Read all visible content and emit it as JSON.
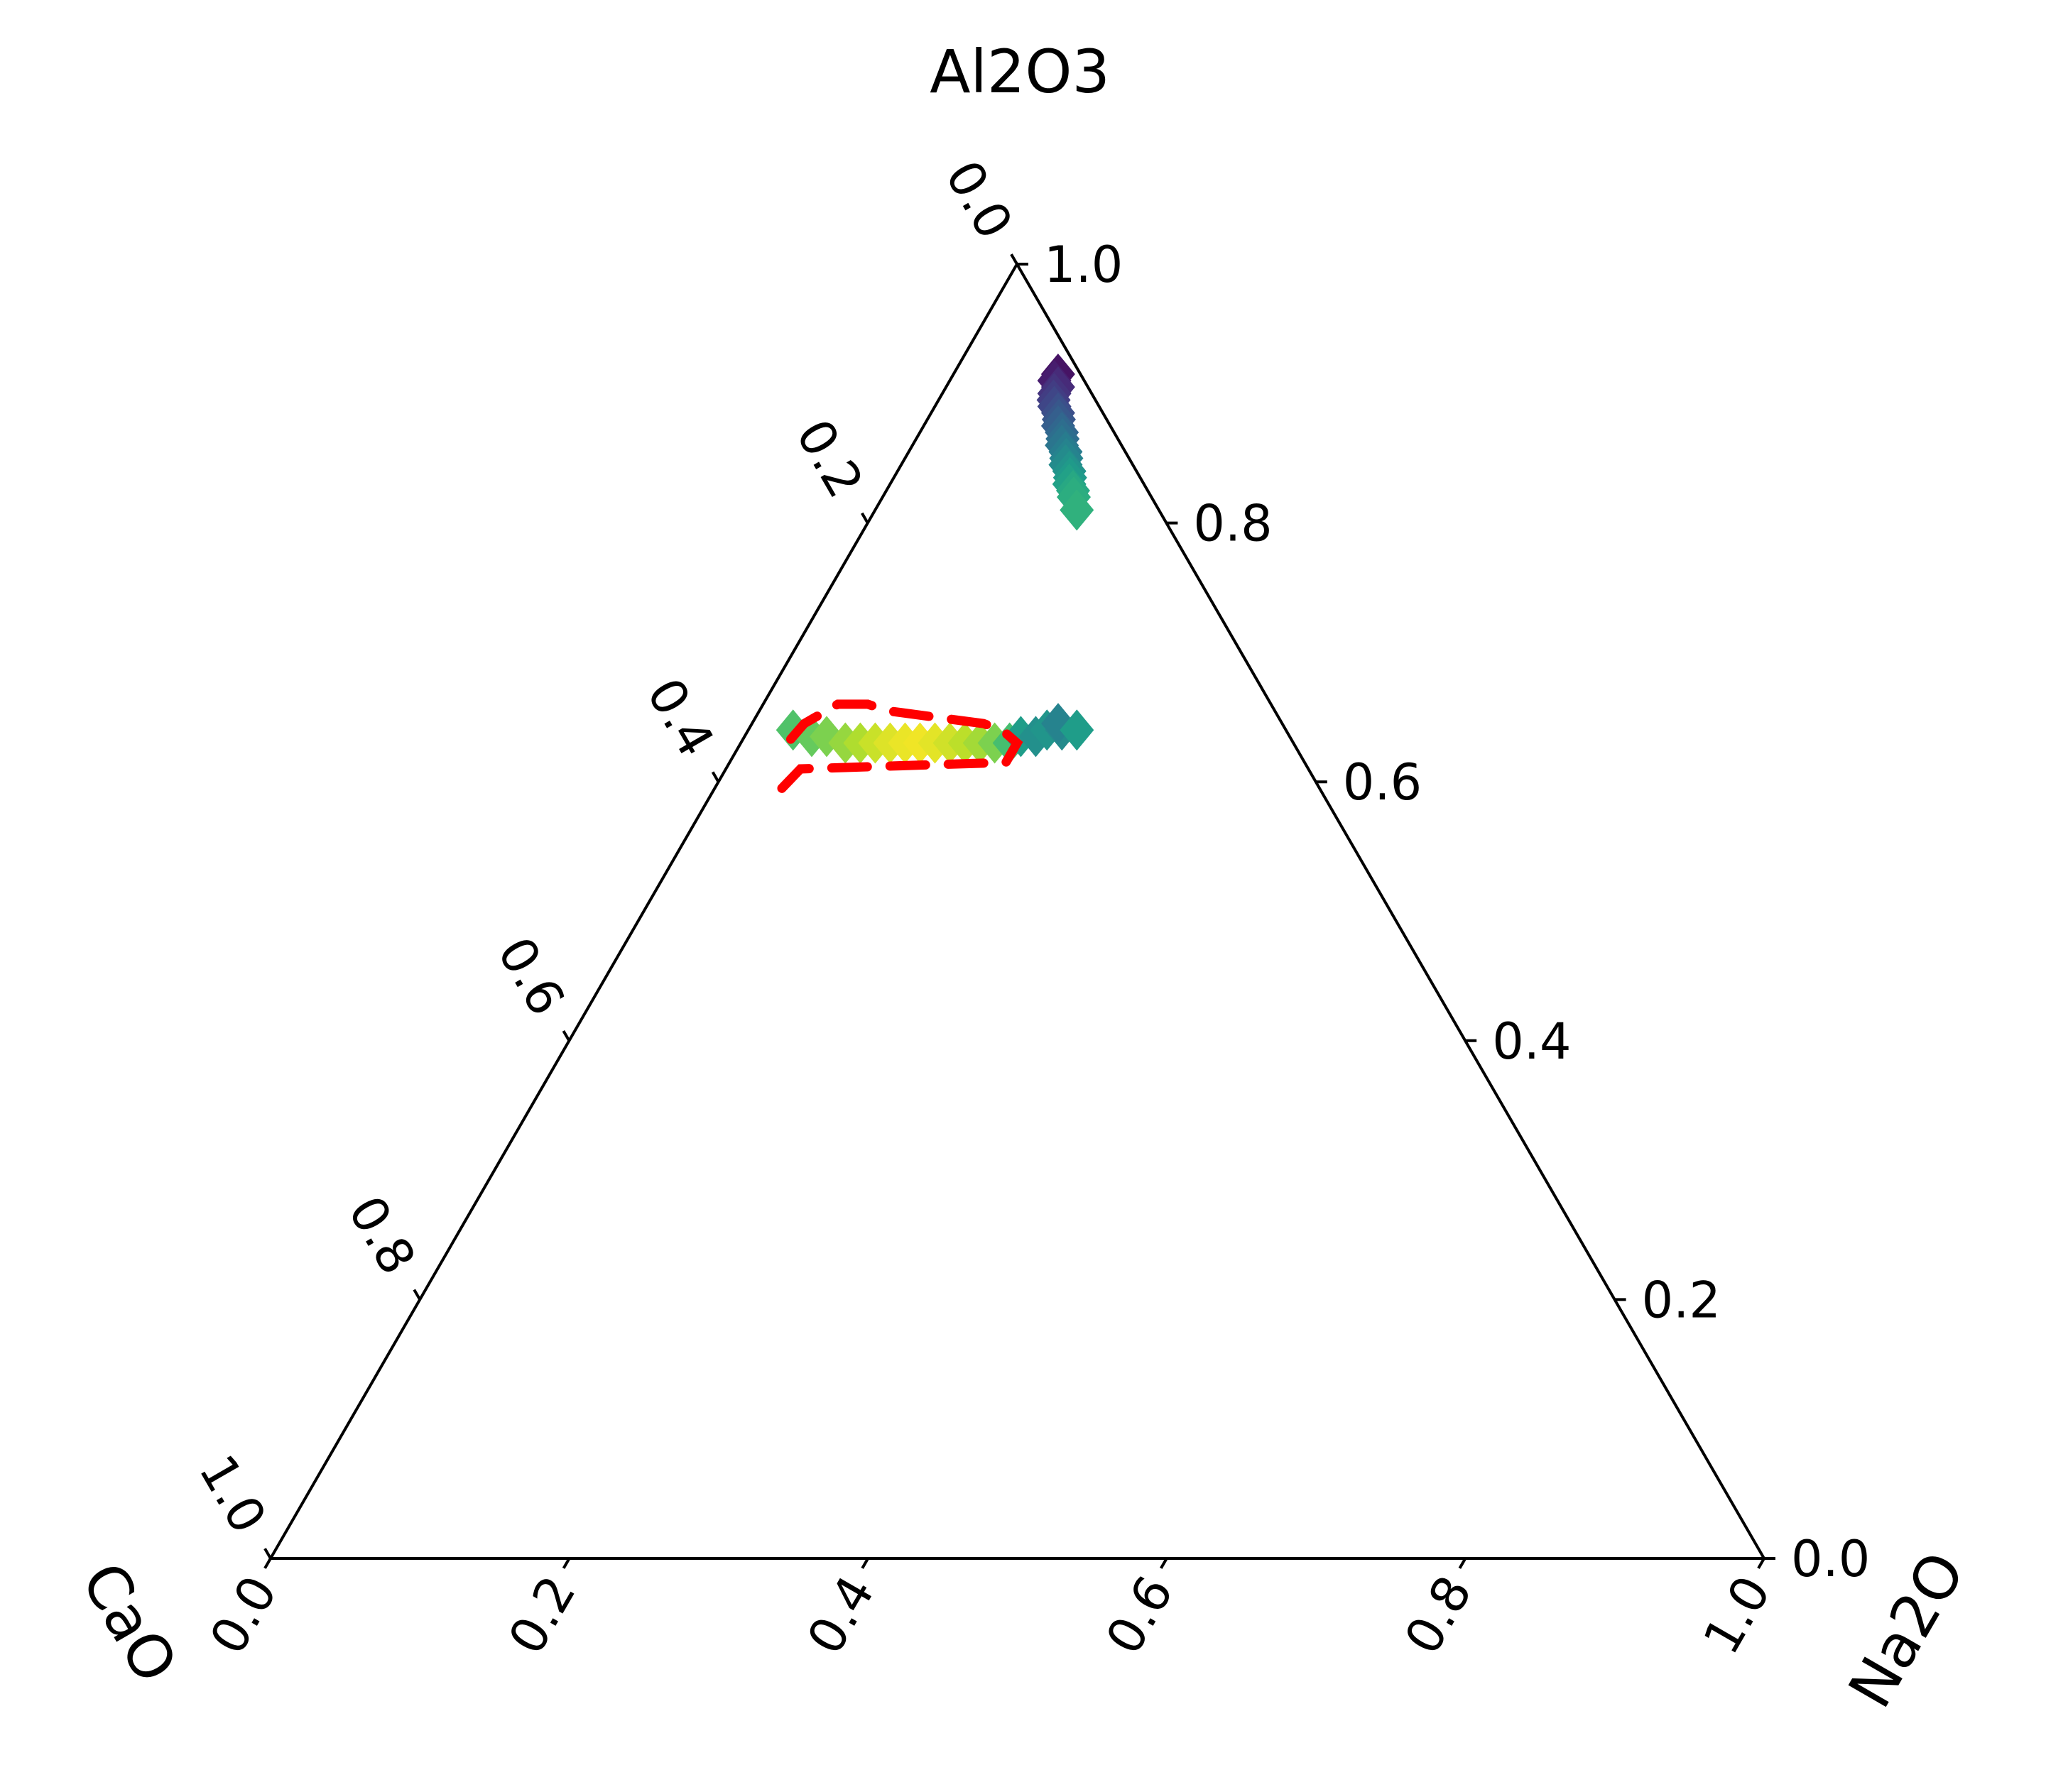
{
  "chart_data": {
    "type": "scatter",
    "subtype": "ternary",
    "axes": {
      "top": "Al2O3",
      "left": "CaO",
      "right": "Na2O"
    },
    "ticks": [
      "0.0",
      "0.2",
      "0.4",
      "0.6",
      "0.8",
      "1.0"
    ],
    "tick_values": [
      0,
      0.2,
      0.4,
      0.6,
      0.8,
      1.0
    ],
    "colormap": "viridis",
    "marker": "diamond",
    "grid": false,
    "series": [
      {
        "points": [
          {
            "t": 0.915,
            "l": 0.015,
            "c": 0.05
          },
          {
            "t": 0.91,
            "l": 0.02,
            "c": 0.08
          },
          {
            "t": 0.905,
            "l": 0.02,
            "c": 0.12
          },
          {
            "t": 0.9,
            "l": 0.025,
            "c": 0.15
          },
          {
            "t": 0.895,
            "l": 0.028,
            "c": 0.18
          },
          {
            "t": 0.89,
            "l": 0.03,
            "c": 0.21
          },
          {
            "t": 0.885,
            "l": 0.03,
            "c": 0.24
          },
          {
            "t": 0.88,
            "l": 0.032,
            "c": 0.27
          },
          {
            "t": 0.875,
            "l": 0.035,
            "c": 0.3
          },
          {
            "t": 0.87,
            "l": 0.035,
            "c": 0.33
          },
          {
            "t": 0.865,
            "l": 0.037,
            "c": 0.36
          },
          {
            "t": 0.86,
            "l": 0.04,
            "c": 0.39
          },
          {
            "t": 0.855,
            "l": 0.04,
            "c": 0.42
          },
          {
            "t": 0.85,
            "l": 0.042,
            "c": 0.45
          },
          {
            "t": 0.845,
            "l": 0.045,
            "c": 0.48
          },
          {
            "t": 0.84,
            "l": 0.045,
            "c": 0.51
          },
          {
            "t": 0.835,
            "l": 0.047,
            "c": 0.54
          },
          {
            "t": 0.83,
            "l": 0.05,
            "c": 0.57
          },
          {
            "t": 0.825,
            "l": 0.05,
            "c": 0.6
          },
          {
            "t": 0.82,
            "l": 0.052,
            "c": 0.62
          },
          {
            "t": 0.81,
            "l": 0.055,
            "c": 0.64
          }
        ]
      },
      {
        "points": [
          {
            "t": 0.64,
            "l": 0.33,
            "c": 0.72
          },
          {
            "t": 0.635,
            "l": 0.32,
            "c": 0.76
          },
          {
            "t": 0.635,
            "l": 0.31,
            "c": 0.8
          },
          {
            "t": 0.63,
            "l": 0.3,
            "c": 0.84
          },
          {
            "t": 0.63,
            "l": 0.29,
            "c": 0.88
          },
          {
            "t": 0.63,
            "l": 0.28,
            "c": 0.92
          },
          {
            "t": 0.63,
            "l": 0.27,
            "c": 0.95
          },
          {
            "t": 0.63,
            "l": 0.26,
            "c": 0.97
          },
          {
            "t": 0.63,
            "l": 0.25,
            "c": 0.98
          },
          {
            "t": 0.63,
            "l": 0.24,
            "c": 0.96
          },
          {
            "t": 0.63,
            "l": 0.23,
            "c": 0.93
          },
          {
            "t": 0.63,
            "l": 0.22,
            "c": 0.9
          },
          {
            "t": 0.63,
            "l": 0.21,
            "c": 0.86
          },
          {
            "t": 0.63,
            "l": 0.2,
            "c": 0.8
          },
          {
            "t": 0.63,
            "l": 0.19,
            "c": 0.7
          },
          {
            "t": 0.635,
            "l": 0.18,
            "c": 0.55
          },
          {
            "t": 0.635,
            "l": 0.17,
            "c": 0.5
          },
          {
            "t": 0.64,
            "l": 0.16,
            "c": 0.52
          },
          {
            "t": 0.64,
            "l": 0.15,
            "c": 0.48
          },
          {
            "t": 0.645,
            "l": 0.15,
            "c": 0.45
          },
          {
            "t": 0.64,
            "l": 0.14,
            "c": 0.55
          }
        ]
      }
    ],
    "outline": {
      "color": "#ff0000",
      "style": "dashed",
      "points": [
        {
          "t": 0.595,
          "l": 0.36
        },
        {
          "t": 0.61,
          "l": 0.34
        },
        {
          "t": 0.615,
          "l": 0.2
        },
        {
          "t": 0.625,
          "l": 0.19
        },
        {
          "t": 0.63,
          "l": 0.185
        },
        {
          "t": 0.64,
          "l": 0.19
        },
        {
          "t": 0.645,
          "l": 0.2
        },
        {
          "t": 0.655,
          "l": 0.26
        },
        {
          "t": 0.66,
          "l": 0.27
        },
        {
          "t": 0.66,
          "l": 0.29
        },
        {
          "t": 0.645,
          "l": 0.32
        },
        {
          "t": 0.625,
          "l": 0.345
        },
        {
          "t": 0.62,
          "l": 0.35
        }
      ]
    }
  }
}
